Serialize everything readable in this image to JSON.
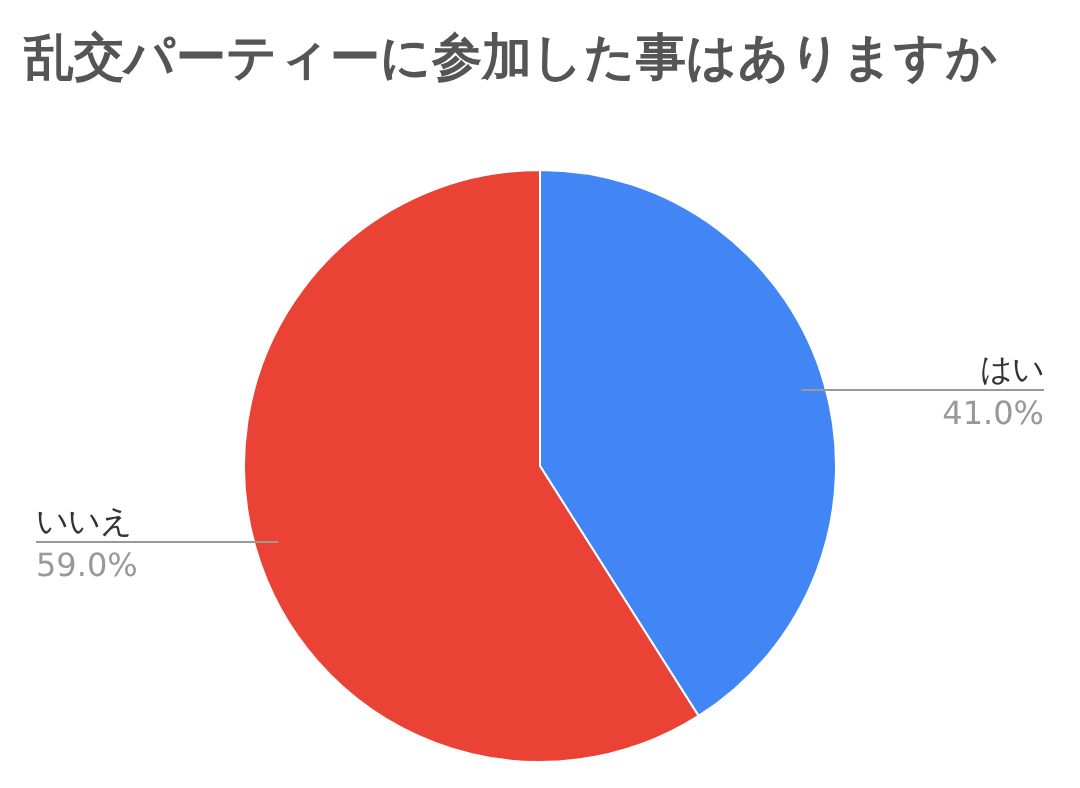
{
  "chart_data": {
    "type": "pie",
    "title": "乱交パーティーに参加した事はありますか",
    "categories": [
      "はい",
      "いいえ"
    ],
    "values": [
      41,
      59
    ],
    "colors": [
      "#4285f4",
      "#ea4335"
    ],
    "value_labels": [
      "41.0%",
      "59.0%"
    ],
    "legend": false
  }
}
